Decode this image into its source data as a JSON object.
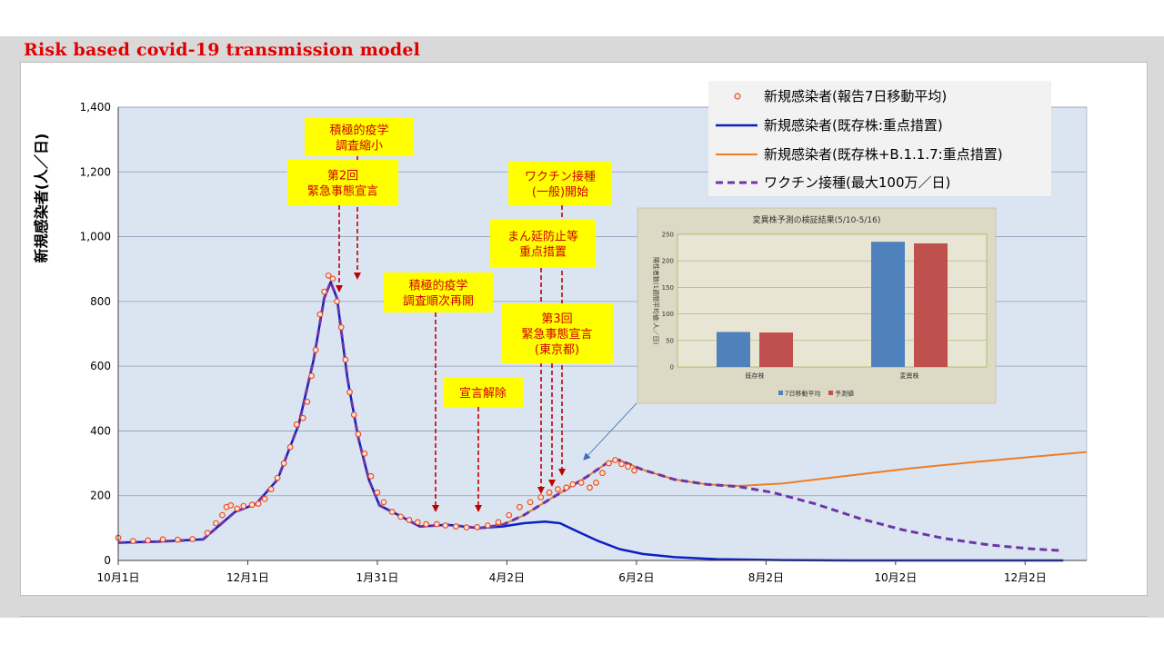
{
  "slide": {
    "title": "Risk based covid-19 transmission model"
  },
  "chart_data": [
    {
      "type": "line",
      "ylabel": "新規感染者(人／日)",
      "ylim": [
        0,
        1400
      ],
      "yticks": [
        0,
        200,
        400,
        600,
        800,
        1000,
        1200,
        1400
      ],
      "ytick_labels": [
        "0",
        "200",
        "400",
        "600",
        "800",
        "1,000",
        "1,200",
        "1,400"
      ],
      "xlim": [
        "2020-10-01",
        "2021-12-31"
      ],
      "xticks": [
        "2020-10-01",
        "2020-12-01",
        "2021-01-31",
        "2021-04-02",
        "2021-06-02",
        "2021-08-02",
        "2021-10-02",
        "2021-12-02"
      ],
      "xtick_labels": [
        "10月1日",
        "12月1日",
        "1月31日",
        "4月2日",
        "6月2日",
        "8月2日",
        "10月2日",
        "12月2日"
      ],
      "grid": "horizontal",
      "legend_position": "top-right",
      "colors": {
        "observed": "#e8502a",
        "baseline": "#0b1fc4",
        "variant": "#ee7d26",
        "vaccine": "#6d35a8"
      },
      "series": [
        {
          "name": "新規感染者(報告7日移動平均)",
          "style": "markers",
          "points": [
            [
              "2020-10-01",
              70
            ],
            [
              "2020-10-08",
              60
            ],
            [
              "2020-10-15",
              62
            ],
            [
              "2020-10-22",
              65
            ],
            [
              "2020-10-29",
              64
            ],
            [
              "2020-11-05",
              66
            ],
            [
              "2020-11-12",
              85
            ],
            [
              "2020-11-16",
              115
            ],
            [
              "2020-11-19",
              140
            ],
            [
              "2020-11-21",
              165
            ],
            [
              "2020-11-23",
              170
            ],
            [
              "2020-11-26",
              160
            ],
            [
              "2020-11-29",
              168
            ],
            [
              "2020-12-03",
              172
            ],
            [
              "2020-12-06",
              175
            ],
            [
              "2020-12-09",
              190
            ],
            [
              "2020-12-12",
              220
            ],
            [
              "2020-12-15",
              255
            ],
            [
              "2020-12-18",
              300
            ],
            [
              "2020-12-21",
              350
            ],
            [
              "2020-12-24",
              420
            ],
            [
              "2020-12-27",
              440
            ],
            [
              "2020-12-29",
              490
            ],
            [
              "2020-12-31",
              570
            ],
            [
              "2021-01-02",
              650
            ],
            [
              "2021-01-04",
              760
            ],
            [
              "2021-01-06",
              830
            ],
            [
              "2021-01-08",
              880
            ],
            [
              "2021-01-10",
              870
            ],
            [
              "2021-01-12",
              800
            ],
            [
              "2021-01-14",
              720
            ],
            [
              "2021-01-16",
              620
            ],
            [
              "2021-01-18",
              520
            ],
            [
              "2021-01-20",
              450
            ],
            [
              "2021-01-22",
              390
            ],
            [
              "2021-01-25",
              330
            ],
            [
              "2021-01-28",
              260
            ],
            [
              "2021-01-31",
              210
            ],
            [
              "2021-02-03",
              180
            ],
            [
              "2021-02-07",
              150
            ],
            [
              "2021-02-11",
              135
            ],
            [
              "2021-02-15",
              125
            ],
            [
              "2021-02-19",
              118
            ],
            [
              "2021-02-23",
              112
            ],
            [
              "2021-02-28",
              112
            ],
            [
              "2021-03-04",
              108
            ],
            [
              "2021-03-09",
              105
            ],
            [
              "2021-03-14",
              102
            ],
            [
              "2021-03-19",
              103
            ],
            [
              "2021-03-24",
              108
            ],
            [
              "2021-03-29",
              118
            ],
            [
              "2021-04-03",
              140
            ],
            [
              "2021-04-08",
              165
            ],
            [
              "2021-04-13",
              180
            ],
            [
              "2021-04-18",
              195
            ],
            [
              "2021-04-22",
              210
            ],
            [
              "2021-04-26",
              220
            ],
            [
              "2021-04-30",
              225
            ],
            [
              "2021-05-03",
              235
            ],
            [
              "2021-05-07",
              240
            ],
            [
              "2021-05-11",
              225
            ],
            [
              "2021-05-14",
              240
            ],
            [
              "2021-05-17",
              270
            ],
            [
              "2021-05-20",
              300
            ],
            [
              "2021-05-23",
              310
            ],
            [
              "2021-05-26",
              298
            ],
            [
              "2021-05-29",
              290
            ],
            [
              "2021-06-01",
              278
            ]
          ]
        },
        {
          "name": "新規感染者(既存株:重点措置)",
          "style": "line",
          "points": [
            [
              "2020-10-01",
              55
            ],
            [
              "2020-10-20",
              58
            ],
            [
              "2020-11-10",
              65
            ],
            [
              "2020-11-25",
              150
            ],
            [
              "2020-12-05",
              175
            ],
            [
              "2020-12-15",
              250
            ],
            [
              "2020-12-25",
              420
            ],
            [
              "2021-01-01",
              620
            ],
            [
              "2021-01-06",
              810
            ],
            [
              "2021-01-09",
              860
            ],
            [
              "2021-01-12",
              810
            ],
            [
              "2021-01-17",
              560
            ],
            [
              "2021-01-22",
              380
            ],
            [
              "2021-01-27",
              250
            ],
            [
              "2021-02-01",
              170
            ],
            [
              "2021-02-10",
              140
            ],
            [
              "2021-02-20",
              105
            ],
            [
              "2021-03-05",
              110
            ],
            [
              "2021-03-20",
              100
            ],
            [
              "2021-03-31",
              105
            ],
            [
              "2021-04-10",
              115
            ],
            [
              "2021-04-20",
              120
            ],
            [
              "2021-04-27",
              115
            ],
            [
              "2021-05-05",
              90
            ],
            [
              "2021-05-15",
              60
            ],
            [
              "2021-05-25",
              35
            ],
            [
              "2021-06-05",
              20
            ],
            [
              "2021-06-20",
              10
            ],
            [
              "2021-07-10",
              4
            ],
            [
              "2021-08-10",
              1
            ],
            [
              "2021-09-10",
              0
            ],
            [
              "2021-12-20",
              0
            ]
          ]
        },
        {
          "name": "新規感染者(既存株+B.1.1.7:重点措置)",
          "style": "line",
          "points": [
            [
              "2020-10-01",
              55
            ],
            [
              "2020-10-20",
              58
            ],
            [
              "2020-11-10",
              65
            ],
            [
              "2020-11-25",
              150
            ],
            [
              "2020-12-05",
              175
            ],
            [
              "2020-12-15",
              250
            ],
            [
              "2020-12-25",
              420
            ],
            [
              "2021-01-01",
              620
            ],
            [
              "2021-01-06",
              810
            ],
            [
              "2021-01-09",
              860
            ],
            [
              "2021-01-12",
              810
            ],
            [
              "2021-01-17",
              560
            ],
            [
              "2021-01-22",
              380
            ],
            [
              "2021-01-27",
              250
            ],
            [
              "2021-02-01",
              170
            ],
            [
              "2021-02-10",
              140
            ],
            [
              "2021-02-20",
              105
            ],
            [
              "2021-03-05",
              110
            ],
            [
              "2021-03-20",
              100
            ],
            [
              "2021-03-31",
              110
            ],
            [
              "2021-04-10",
              140
            ],
            [
              "2021-04-20",
              180
            ],
            [
              "2021-04-30",
              220
            ],
            [
              "2021-05-10",
              260
            ],
            [
              "2021-05-20",
              305
            ],
            [
              "2021-05-25",
              310
            ],
            [
              "2021-06-05",
              280
            ],
            [
              "2021-06-20",
              250
            ],
            [
              "2021-07-05",
              235
            ],
            [
              "2021-07-20",
              230
            ],
            [
              "2021-08-10",
              238
            ],
            [
              "2021-09-10",
              262
            ],
            [
              "2021-10-10",
              285
            ],
            [
              "2021-11-10",
              305
            ],
            [
              "2021-12-31",
              335
            ]
          ]
        },
        {
          "name": "ワクチン接種(最大100万／日)",
          "style": "dashed",
          "points": [
            [
              "2020-10-01",
              55
            ],
            [
              "2020-10-20",
              58
            ],
            [
              "2020-11-10",
              65
            ],
            [
              "2020-11-25",
              150
            ],
            [
              "2020-12-05",
              175
            ],
            [
              "2020-12-15",
              250
            ],
            [
              "2020-12-25",
              420
            ],
            [
              "2021-01-01",
              620
            ],
            [
              "2021-01-06",
              810
            ],
            [
              "2021-01-09",
              860
            ],
            [
              "2021-01-12",
              810
            ],
            [
              "2021-01-17",
              560
            ],
            [
              "2021-01-22",
              380
            ],
            [
              "2021-01-27",
              250
            ],
            [
              "2021-02-01",
              170
            ],
            [
              "2021-02-10",
              140
            ],
            [
              "2021-02-20",
              105
            ],
            [
              "2021-03-05",
              110
            ],
            [
              "2021-03-20",
              100
            ],
            [
              "2021-03-31",
              110
            ],
            [
              "2021-04-10",
              140
            ],
            [
              "2021-04-20",
              180
            ],
            [
              "2021-04-30",
              220
            ],
            [
              "2021-05-10",
              260
            ],
            [
              "2021-05-20",
              305
            ],
            [
              "2021-05-25",
              310
            ],
            [
              "2021-06-05",
              280
            ],
            [
              "2021-06-20",
              250
            ],
            [
              "2021-07-05",
              235
            ],
            [
              "2021-07-20",
              228
            ],
            [
              "2021-08-05",
              210
            ],
            [
              "2021-08-25",
              175
            ],
            [
              "2021-09-15",
              130
            ],
            [
              "2021-10-05",
              95
            ],
            [
              "2021-10-25",
              68
            ],
            [
              "2021-11-15",
              48
            ],
            [
              "2021-12-05",
              36
            ],
            [
              "2021-12-20",
              30
            ]
          ]
        }
      ],
      "annotations": [
        {
          "text": "積極的疫学\n調査縮小",
          "x": "2021-01-09"
        },
        {
          "text": "第2回\n緊急事態宣言",
          "x": "2021-01-07"
        },
        {
          "text": "積極的疫学\n調査順次再開",
          "x": "2021-02-28"
        },
        {
          "text": "宣言解除",
          "x": "2021-03-21"
        },
        {
          "text": "ワクチン接種\n(一般)開始",
          "x": "2021-05-01"
        },
        {
          "text": "まん延防止等\n重点措置",
          "x": "2021-04-20"
        },
        {
          "text": "第3回\n緊急事態宣言\n(東京都)",
          "x": "2021-04-25"
        }
      ]
    },
    {
      "type": "bar",
      "title": "変異株予測の検証結果",
      "subtitle": "(5/10-5/16)",
      "ylabel": "陽性者数(1週間平均値:人／日)",
      "ylim": [
        0,
        250
      ],
      "yticks": [
        0,
        50,
        100,
        150,
        200,
        250
      ],
      "categories": [
        "既存株",
        "変異株"
      ],
      "series": [
        {
          "name": "7日移動平均",
          "values": [
            66,
            236
          ],
          "color": "#4f81bd"
        },
        {
          "name": "予測値",
          "values": [
            65,
            233
          ],
          "color": "#c0504d"
        }
      ]
    }
  ]
}
